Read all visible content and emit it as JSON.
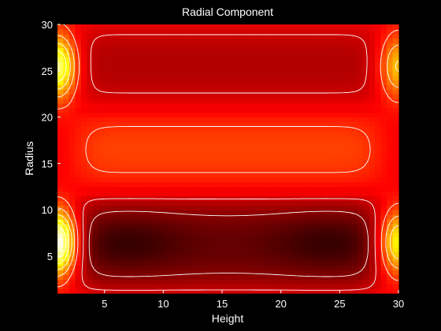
{
  "chart_data": {
    "type": "heatmap",
    "title": "Radial Component",
    "xlabel": "Height",
    "ylabel": "Radius",
    "xlim": [
      1,
      30
    ],
    "ylim": [
      1,
      30
    ],
    "xticks": [
      5,
      10,
      15,
      20,
      25,
      30
    ],
    "yticks": [
      5,
      10,
      15,
      20,
      25,
      30
    ],
    "colormap": "hot",
    "background": "#000000",
    "contour_color": "#ffffff",
    "grid": false,
    "bands": [
      {
        "radius": [
          1,
          11.5
        ],
        "center_radius": 6.5,
        "level": 0.15,
        "cores": [
          7,
          24
        ]
      },
      {
        "radius": [
          12.5,
          20.5
        ],
        "center_radius": 16.5,
        "level": 0.47,
        "cores": []
      },
      {
        "radius": [
          21.5,
          30
        ],
        "center_radius": 25.5,
        "level": 0.26,
        "cores": []
      }
    ],
    "edge_hotspots": [
      {
        "height": 1,
        "radius": 6.5,
        "level": 1.0
      },
      {
        "height": 1,
        "radius": 25.5,
        "level": 0.85
      },
      {
        "height": 30,
        "radius": 6.5,
        "level": 0.75
      },
      {
        "height": 30,
        "radius": 25.5,
        "level": 0.65
      }
    ]
  }
}
